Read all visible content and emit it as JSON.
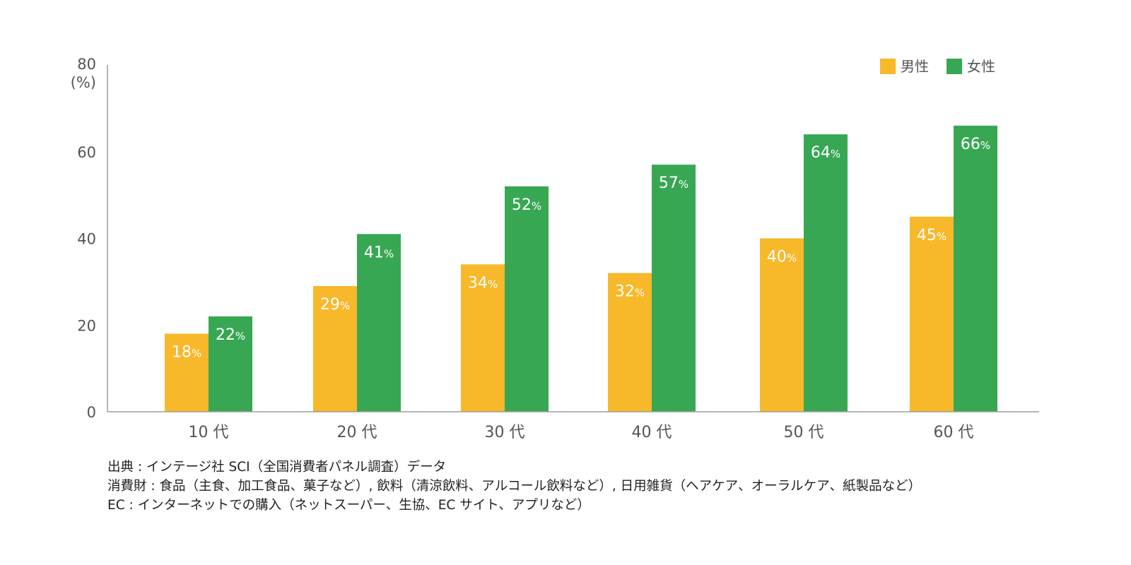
{
  "chart_data": {
    "type": "bar",
    "y_tick_top_label": "80",
    "y_unit_label": "(%)",
    "ylim": [
      0,
      80
    ],
    "y_ticks": [
      "0",
      "20",
      "40",
      "60"
    ],
    "categories": [
      "10 代",
      "20 代",
      "30 代",
      "40 代",
      "50 代",
      "60 代"
    ],
    "series": [
      {
        "name": "男性",
        "color": "#F7B82A",
        "values": [
          18,
          29,
          34,
          32,
          40,
          45
        ]
      },
      {
        "name": "女性",
        "color": "#38A753",
        "values": [
          22,
          41,
          52,
          57,
          64,
          66
        ]
      }
    ],
    "label_unit": "%",
    "legend_position": "top-right",
    "grid": false
  },
  "footnotes": [
    "出典 : インテージ社  SCI（全国消費者パネル調査）データ",
    "消費財 : 食品（主食、加工食品、菓子など）, 飲料（清涼飲料、アルコール飲料など）, 日用雑貨（ヘアケア、オーラルケア、紙製品など）",
    "EC  : インターネットでの購入（ネットスーパー、生協、EC サイト、アプリなど）"
  ]
}
